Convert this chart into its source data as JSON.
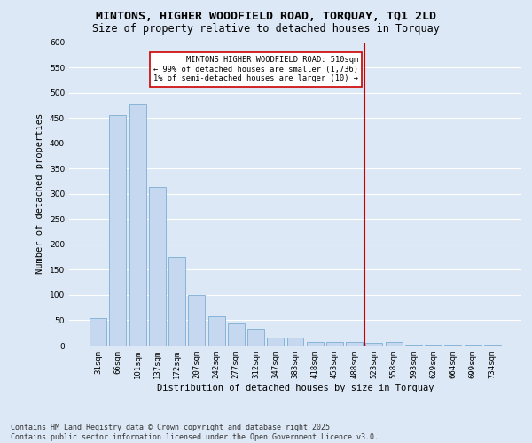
{
  "title": "MINTONS, HIGHER WOODFIELD ROAD, TORQUAY, TQ1 2LD",
  "subtitle": "Size of property relative to detached houses in Torquay",
  "xlabel": "Distribution of detached houses by size in Torquay",
  "ylabel": "Number of detached properties",
  "bar_color": "#c5d8f0",
  "bar_edge_color": "#7aadd4",
  "categories": [
    "31sqm",
    "66sqm",
    "101sqm",
    "137sqm",
    "172sqm",
    "207sqm",
    "242sqm",
    "277sqm",
    "312sqm",
    "347sqm",
    "383sqm",
    "418sqm",
    "453sqm",
    "488sqm",
    "523sqm",
    "558sqm",
    "593sqm",
    "629sqm",
    "664sqm",
    "699sqm",
    "734sqm"
  ],
  "values": [
    55,
    455,
    478,
    313,
    175,
    100,
    58,
    43,
    33,
    15,
    15,
    7,
    7,
    7,
    5,
    7,
    1,
    1,
    1,
    1,
    1
  ],
  "ylim": [
    0,
    600
  ],
  "yticks": [
    0,
    50,
    100,
    150,
    200,
    250,
    300,
    350,
    400,
    450,
    500,
    550,
    600
  ],
  "vline_x_idx": 14,
  "vline_color": "#cc0000",
  "annotation_text": "MINTONS HIGHER WOODFIELD ROAD: 510sqm\n← 99% of detached houses are smaller (1,736)\n1% of semi-detached houses are larger (10) →",
  "annotation_box_color": "#ffffff",
  "annotation_box_edge": "#cc0000",
  "footer_text": "Contains HM Land Registry data © Crown copyright and database right 2025.\nContains public sector information licensed under the Open Government Licence v3.0.",
  "background_color": "#dce8f5",
  "grid_color": "#ffffff",
  "title_fontsize": 9.5,
  "subtitle_fontsize": 8.5,
  "axis_label_fontsize": 7.5,
  "tick_fontsize": 6.5,
  "footer_fontsize": 6.0
}
